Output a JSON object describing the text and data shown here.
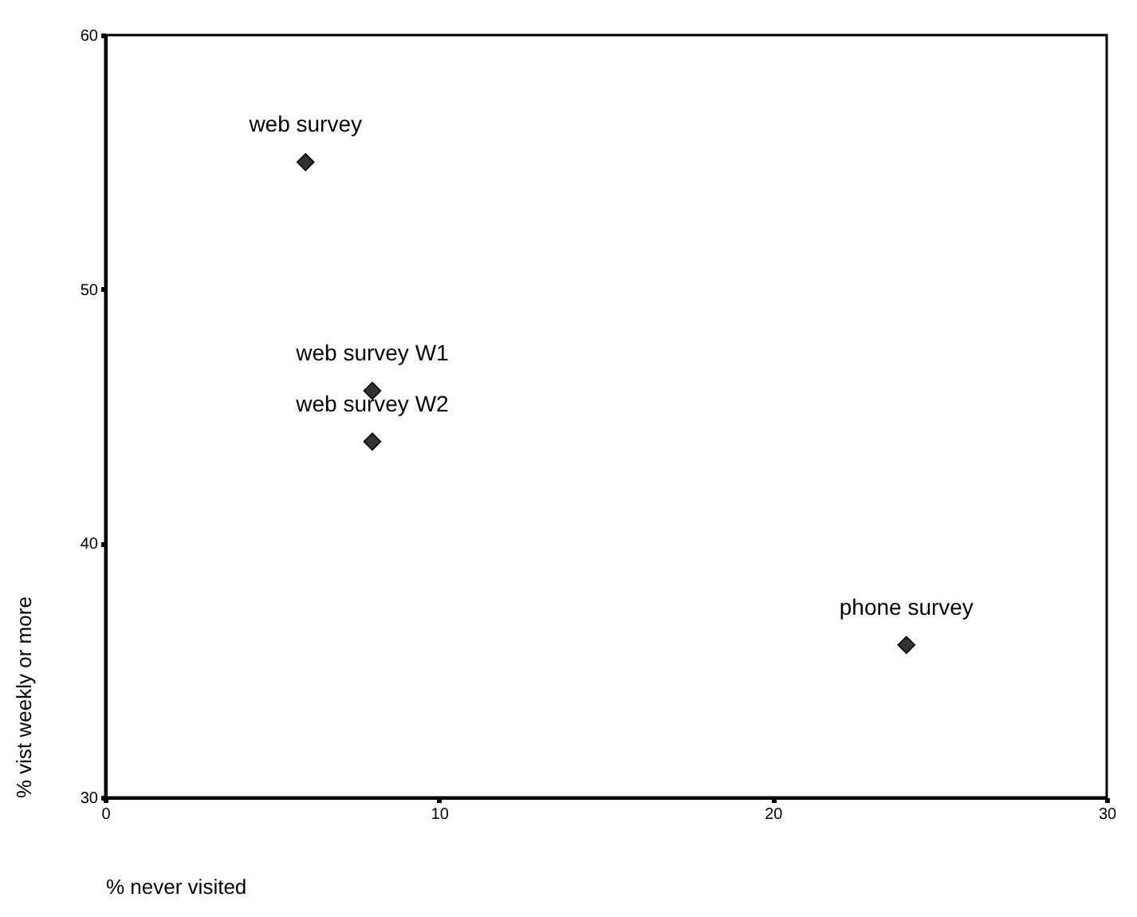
{
  "chart_data": {
    "type": "scatter",
    "xlabel": "% never visited",
    "ylabel": "% vist weekly or more",
    "x": [
      6,
      8,
      8,
      24
    ],
    "series": [
      {
        "color": "#333333",
        "values": [
          55,
          46,
          44,
          36
        ]
      }
    ],
    "annotations": [
      {
        "text": "web survey",
        "x": 6,
        "y": 55
      },
      {
        "text": "web survey W1",
        "x": 8,
        "y": 46
      },
      {
        "text": "web survey W2",
        "x": 8,
        "y": 44
      },
      {
        "text": "phone survey",
        "x": 24,
        "y": 36
      }
    ],
    "xlim": [
      0,
      30
    ],
    "ylim": [
      30,
      60
    ],
    "xticks": [
      0,
      10,
      20,
      30
    ],
    "yticks": [
      30,
      40,
      50,
      60
    ],
    "grid": false,
    "marker": "diamond"
  }
}
